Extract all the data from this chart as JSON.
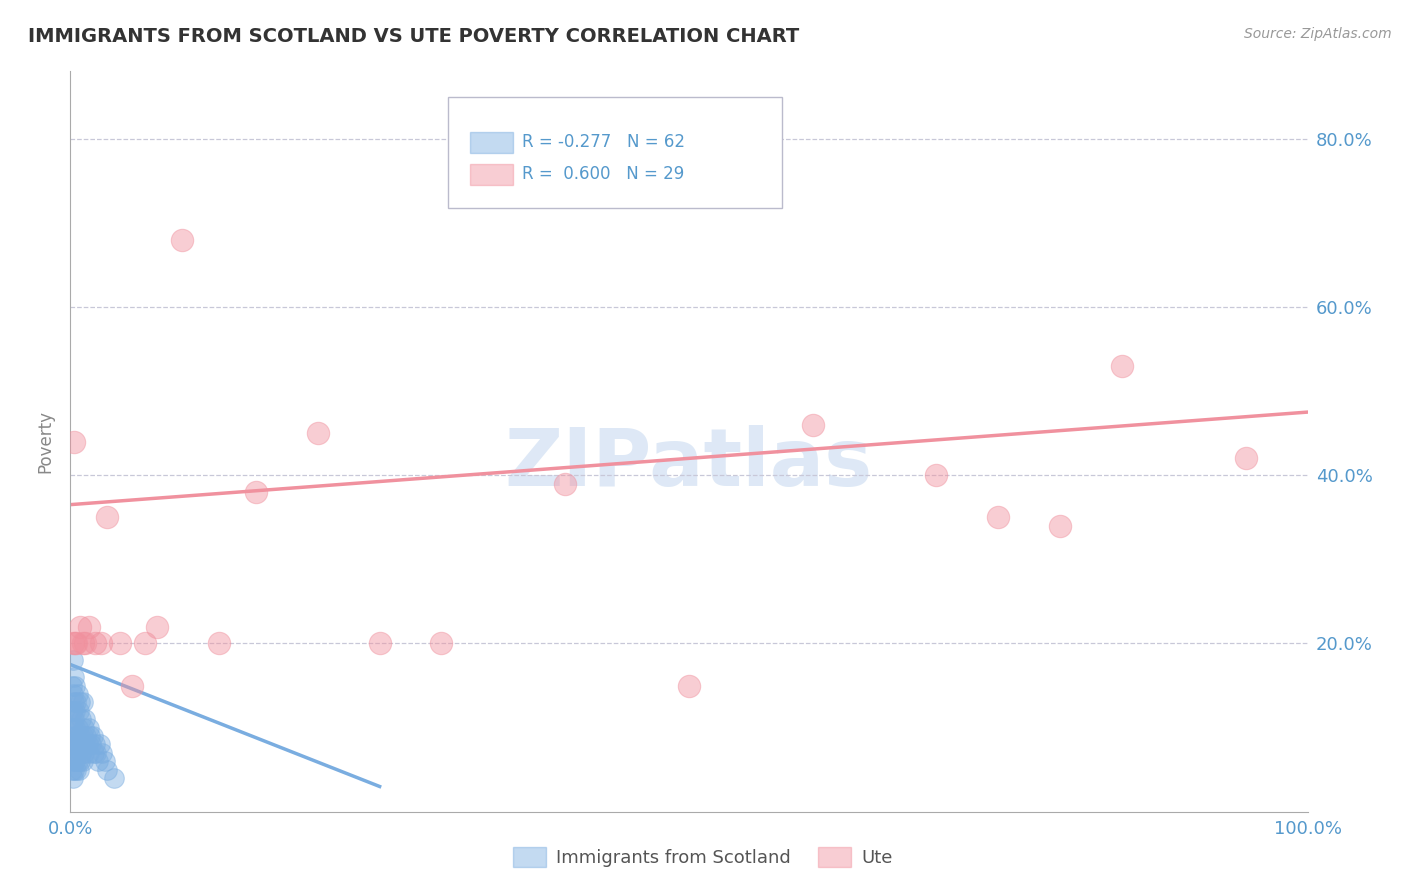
{
  "title": "IMMIGRANTS FROM SCOTLAND VS UTE POVERTY CORRELATION CHART",
  "source": "Source: ZipAtlas.com",
  "ylabel": "Poverty",
  "xlim": [
    0,
    1.0
  ],
  "ylim": [
    0,
    0.88
  ],
  "xticks": [
    0.0,
    0.1,
    0.2,
    0.3,
    0.4,
    0.5,
    0.6,
    0.7,
    0.8,
    0.9,
    1.0
  ],
  "xticklabels": [
    "0.0%",
    "",
    "",
    "",
    "",
    "",
    "",
    "",
    "",
    "",
    "100.0%"
  ],
  "ytick_positions": [
    0.0,
    0.2,
    0.4,
    0.6,
    0.8
  ],
  "ytick_labels": [
    "",
    "20.0%",
    "40.0%",
    "60.0%",
    "80.0%"
  ],
  "grid_color": "#c8c8d8",
  "background_color": "#ffffff",
  "blue_color": "#7aade0",
  "pink_color": "#f0919e",
  "legend_R_blue": "R = -0.277",
  "legend_N_blue": "N = 62",
  "legend_R_pink": "R =  0.600",
  "legend_N_pink": "N = 29",
  "legend_label_blue": "Immigrants from Scotland",
  "legend_label_pink": "Ute",
  "tick_color": "#5599cc",
  "blue_scatter_x": [
    0.001,
    0.001,
    0.001,
    0.001,
    0.001,
    0.002,
    0.002,
    0.002,
    0.002,
    0.002,
    0.002,
    0.002,
    0.003,
    0.003,
    0.003,
    0.003,
    0.003,
    0.003,
    0.004,
    0.004,
    0.004,
    0.004,
    0.004,
    0.005,
    0.005,
    0.005,
    0.005,
    0.006,
    0.006,
    0.006,
    0.006,
    0.007,
    0.007,
    0.007,
    0.008,
    0.008,
    0.008,
    0.009,
    0.009,
    0.01,
    0.01,
    0.01,
    0.011,
    0.011,
    0.012,
    0.012,
    0.013,
    0.014,
    0.015,
    0.015,
    0.016,
    0.017,
    0.018,
    0.019,
    0.02,
    0.021,
    0.022,
    0.024,
    0.026,
    0.028,
    0.03,
    0.035
  ],
  "blue_scatter_y": [
    0.05,
    0.08,
    0.1,
    0.12,
    0.15,
    0.04,
    0.06,
    0.08,
    0.1,
    0.12,
    0.14,
    0.18,
    0.05,
    0.07,
    0.09,
    0.11,
    0.13,
    0.16,
    0.06,
    0.08,
    0.1,
    0.12,
    0.15,
    0.05,
    0.07,
    0.09,
    0.13,
    0.06,
    0.08,
    0.1,
    0.14,
    0.05,
    0.08,
    0.12,
    0.06,
    0.09,
    0.13,
    0.07,
    0.11,
    0.06,
    0.09,
    0.13,
    0.07,
    0.1,
    0.08,
    0.11,
    0.09,
    0.08,
    0.07,
    0.1,
    0.09,
    0.08,
    0.09,
    0.07,
    0.08,
    0.07,
    0.06,
    0.08,
    0.07,
    0.06,
    0.05,
    0.04
  ],
  "pink_scatter_x": [
    0.002,
    0.003,
    0.004,
    0.005,
    0.008,
    0.01,
    0.012,
    0.015,
    0.02,
    0.025,
    0.03,
    0.04,
    0.05,
    0.06,
    0.07,
    0.09,
    0.12,
    0.15,
    0.2,
    0.25,
    0.3,
    0.4,
    0.5,
    0.6,
    0.7,
    0.75,
    0.8,
    0.85,
    0.95
  ],
  "pink_scatter_y": [
    0.2,
    0.44,
    0.2,
    0.2,
    0.22,
    0.2,
    0.2,
    0.22,
    0.2,
    0.2,
    0.35,
    0.2,
    0.15,
    0.2,
    0.22,
    0.68,
    0.2,
    0.38,
    0.45,
    0.2,
    0.2,
    0.39,
    0.15,
    0.46,
    0.4,
    0.35,
    0.34,
    0.53,
    0.42
  ],
  "blue_line_x": [
    0.0,
    0.25
  ],
  "blue_line_y": [
    0.175,
    0.03
  ],
  "pink_line_x": [
    0.0,
    1.0
  ],
  "pink_line_y": [
    0.365,
    0.475
  ]
}
